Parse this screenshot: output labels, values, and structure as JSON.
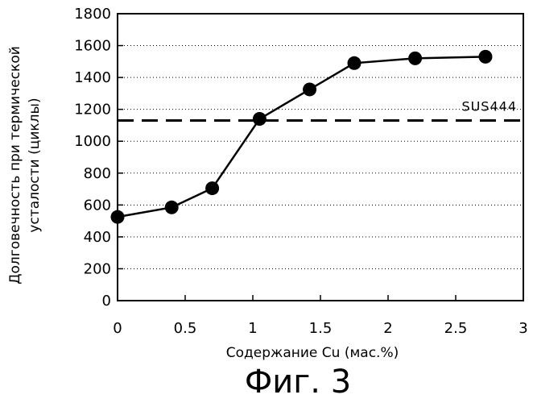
{
  "chart_data": {
    "type": "line",
    "xlabel": "Содержание Cu (мас.%)",
    "ylabel_lines": [
      "Долговечность при термической",
      "усталости (циклы)"
    ],
    "xlim": [
      0,
      3
    ],
    "ylim": [
      0,
      1800
    ],
    "x_ticks": [
      0,
      0.5,
      1,
      1.5,
      2,
      2.5,
      3
    ],
    "x_tick_labels": [
      "0",
      "0.5",
      "1",
      "1.5",
      "2",
      "2.5",
      "3"
    ],
    "y_ticks": [
      0,
      200,
      400,
      600,
      800,
      1000,
      1200,
      1400,
      1600,
      1800
    ],
    "y_tick_labels": [
      "0",
      "200",
      "400",
      "600",
      "800",
      "1000",
      "1200",
      "1400",
      "1600",
      "1800"
    ],
    "grid": "horizontal-dotted",
    "series": [
      {
        "x": [
          0,
          0.4,
          0.7,
          1.05,
          1.42,
          1.75,
          2.2,
          2.72
        ],
        "y": [
          525,
          585,
          705,
          1140,
          1325,
          1490,
          1520,
          1530
        ],
        "color": "#000000",
        "marker": "filled-circle"
      }
    ],
    "reference_line": {
      "label": "SUS444",
      "y": 1130,
      "style": "dashed"
    }
  },
  "caption": "Фиг. 3"
}
